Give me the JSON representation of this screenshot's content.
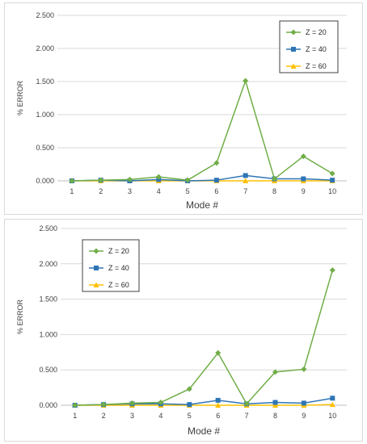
{
  "chart_data": [
    {
      "type": "line",
      "xlabel": "Mode #",
      "ylabel": "% ERROR",
      "categories": [
        "1",
        "2",
        "3",
        "4",
        "5",
        "6",
        "7",
        "8",
        "9",
        "10"
      ],
      "ylim": [
        0,
        2.5
      ],
      "yticks": [
        "0.000",
        "0.500",
        "1.000",
        "1.500",
        "2.000",
        "2.500"
      ],
      "legend_position": "top-right",
      "series": [
        {
          "name": "Z = 20",
          "color": "#70ad47",
          "marker": "diamond",
          "values": [
            0.0,
            0.01,
            0.02,
            0.06,
            0.01,
            0.27,
            1.51,
            0.03,
            0.37,
            0.11
          ]
        },
        {
          "name": "Z = 40",
          "color": "#2e75b6",
          "marker": "square",
          "values": [
            0.0,
            0.01,
            0.0,
            0.02,
            0.0,
            0.01,
            0.08,
            0.03,
            0.03,
            0.01
          ]
        },
        {
          "name": "Z = 60",
          "color": "#ffc000",
          "marker": "triangle",
          "values": [
            0.0,
            0.0,
            0.0,
            0.0,
            0.0,
            0.0,
            0.0,
            0.0,
            0.0,
            0.0
          ]
        }
      ]
    },
    {
      "type": "line",
      "xlabel": "Mode #",
      "ylabel": "% ERROR",
      "categories": [
        "1",
        "2",
        "3",
        "4",
        "5",
        "6",
        "7",
        "8",
        "9",
        "10"
      ],
      "ylim": [
        0,
        2.5
      ],
      "yticks": [
        "0.000",
        "0.500",
        "1.000",
        "1.500",
        "2.000",
        "2.500"
      ],
      "legend_position": "top-left",
      "series": [
        {
          "name": "Z = 20",
          "color": "#70ad47",
          "marker": "diamond",
          "values": [
            0.0,
            0.01,
            0.03,
            0.04,
            0.23,
            0.74,
            0.02,
            0.47,
            0.51,
            1.91
          ]
        },
        {
          "name": "Z = 40",
          "color": "#2e75b6",
          "marker": "square",
          "values": [
            0.0,
            0.01,
            0.02,
            0.02,
            0.01,
            0.07,
            0.02,
            0.04,
            0.03,
            0.1
          ]
        },
        {
          "name": "Z = 60",
          "color": "#ffc000",
          "marker": "triangle",
          "values": [
            0.0,
            0.0,
            0.0,
            0.0,
            0.0,
            0.0,
            0.0,
            0.0,
            0.0,
            0.01
          ]
        }
      ]
    }
  ]
}
